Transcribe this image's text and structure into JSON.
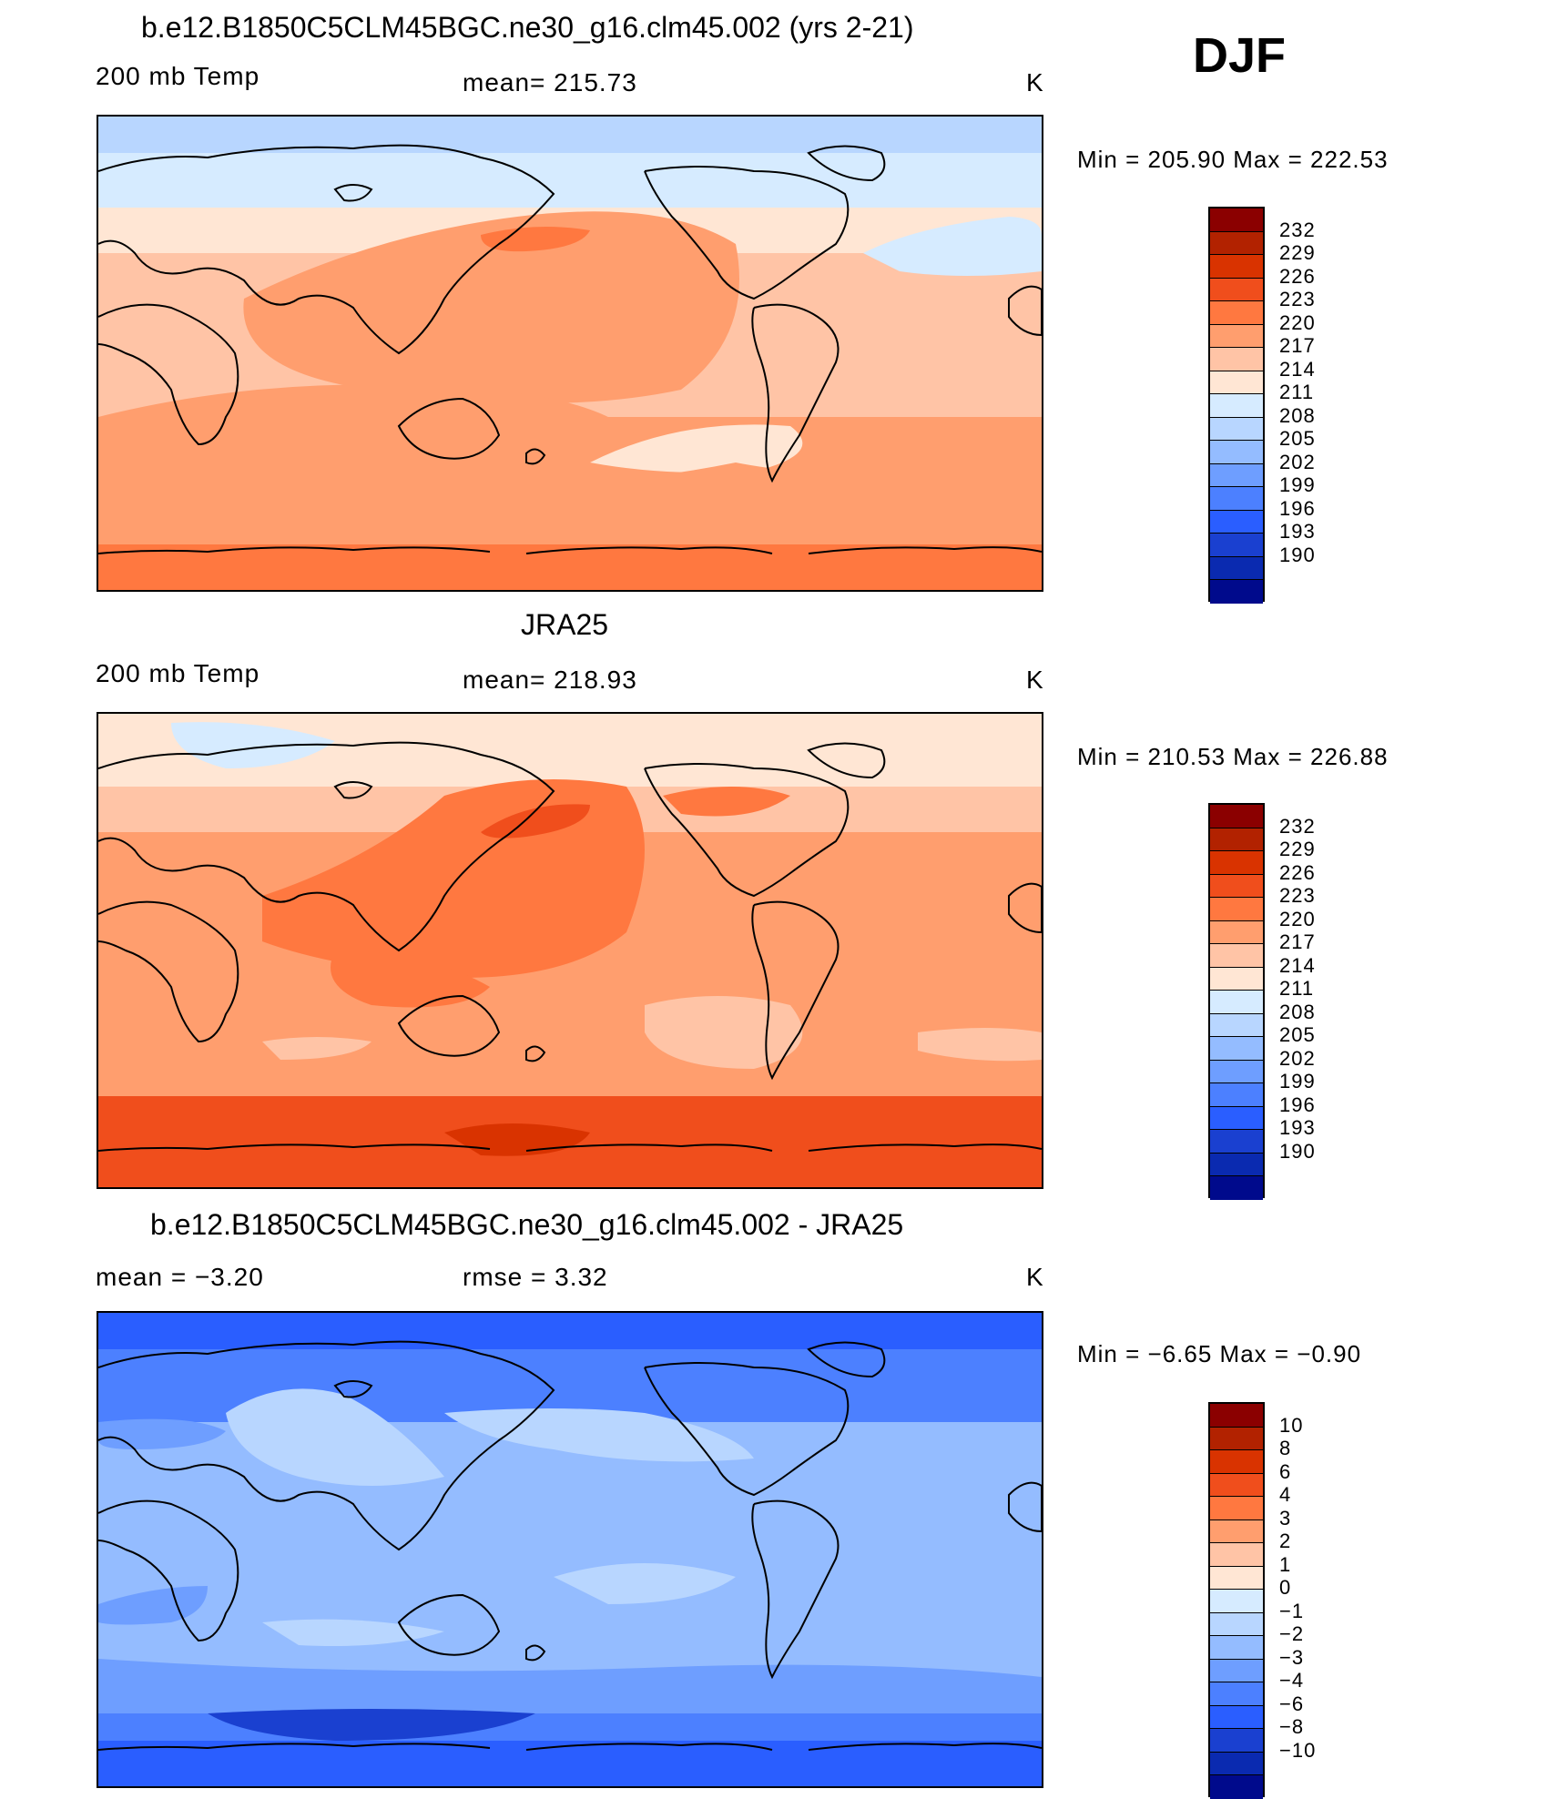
{
  "season": "DJF",
  "panels": [
    {
      "title": "b.e12.B1850C5CLM45BGC.ne30_g16.clm45.002 (yrs 2-21)",
      "left": "200 mb Temp",
      "center": "mean=  215.73",
      "units": "K",
      "stats": "Min  =  205.90  Max  =  222.53",
      "map_type": "absolute-model"
    },
    {
      "title": "JRA25",
      "left": "200 mb Temp",
      "center": "mean=  218.93",
      "units": "K",
      "stats": "Min  =  210.53  Max  =  226.88",
      "map_type": "absolute-obs"
    },
    {
      "title": "b.e12.B1850C5CLM45BGC.ne30_g16.clm45.002 - JRA25",
      "left": "mean  =    −3.20",
      "center": "rmse  =     3.32",
      "units": "K",
      "stats": "Min  =    −6.65  Max  =    −0.90",
      "map_type": "difference"
    }
  ],
  "colorbars": {
    "absolute": {
      "labels": [
        "232",
        "229",
        "226",
        "223",
        "220",
        "217",
        "214",
        "211",
        "208",
        "205",
        "202",
        "199",
        "196",
        "193",
        "190"
      ],
      "colors": [
        "#8b0000",
        "#b22200",
        "#d93300",
        "#f04e1c",
        "#ff7840",
        "#ff9e6e",
        "#ffc4a6",
        "#ffe6d4",
        "#d6ebff",
        "#b8d6ff",
        "#94bcff",
        "#6e9eff",
        "#4c80ff",
        "#2a5eff",
        "#1a40d0",
        "#0a2ab0",
        "#000a8c"
      ]
    },
    "difference": {
      "labels": [
        "10",
        "8",
        "6",
        "4",
        "3",
        "2",
        "1",
        "0",
        "−1",
        "−2",
        "−3",
        "−4",
        "−6",
        "−8",
        "−10"
      ],
      "colors": [
        "#8b0000",
        "#b22200",
        "#d93300",
        "#f04e1c",
        "#ff7840",
        "#ff9e6e",
        "#ffc4a6",
        "#ffe6d4",
        "#d6ebff",
        "#b8d6ff",
        "#94bcff",
        "#6e9eff",
        "#4c80ff",
        "#2a5eff",
        "#1a40d0",
        "#0a2ab0",
        "#000a8c"
      ]
    }
  }
}
